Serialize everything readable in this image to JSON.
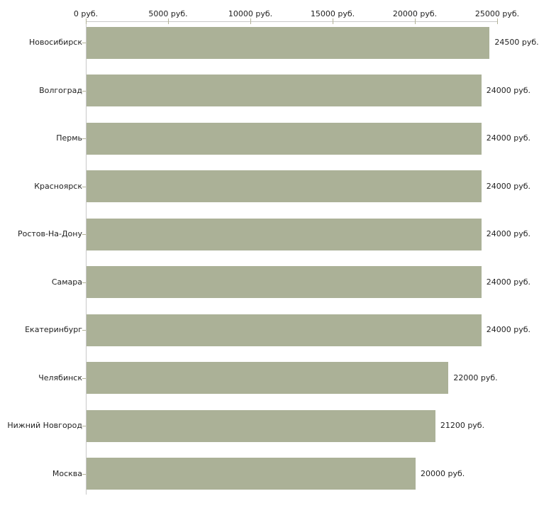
{
  "chart_data": {
    "type": "bar",
    "orientation": "horizontal",
    "title": "",
    "xlabel": "",
    "ylabel": "",
    "unit": "руб.",
    "categories": [
      "Новосибирск",
      "Волгоград",
      "Пермь",
      "Красноярск",
      "Ростов-На-Дону",
      "Самара",
      "Екатеринбург",
      "Челябинск",
      "Нижний Новгород",
      "Москва"
    ],
    "values": [
      24500,
      24000,
      24000,
      24000,
      24000,
      24000,
      24000,
      22000,
      21200,
      20000
    ],
    "bar_labels": [
      "24500 руб.",
      "24000 руб.",
      "24000 руб.",
      "24000 руб.",
      "24000 руб.",
      "24000 руб.",
      "24000 руб.",
      "22000 руб.",
      "21200 руб.",
      "20000 руб."
    ],
    "x_ticks": [
      0,
      5000,
      10000,
      15000,
      20000,
      25000
    ],
    "x_tick_labels": [
      "0 руб.",
      "5000 руб.",
      "10000 руб.",
      "15000 руб.",
      "20000 руб.",
      "25000 руб."
    ],
    "xlim": [
      0,
      25000
    ],
    "axis_position": "top",
    "grid": false,
    "legend": false,
    "colors": {
      "bar": "#abb197",
      "axis_line": "#c9c9c9",
      "tick": "#b2b297",
      "text": "#222222",
      "background": "#ffffff"
    }
  }
}
